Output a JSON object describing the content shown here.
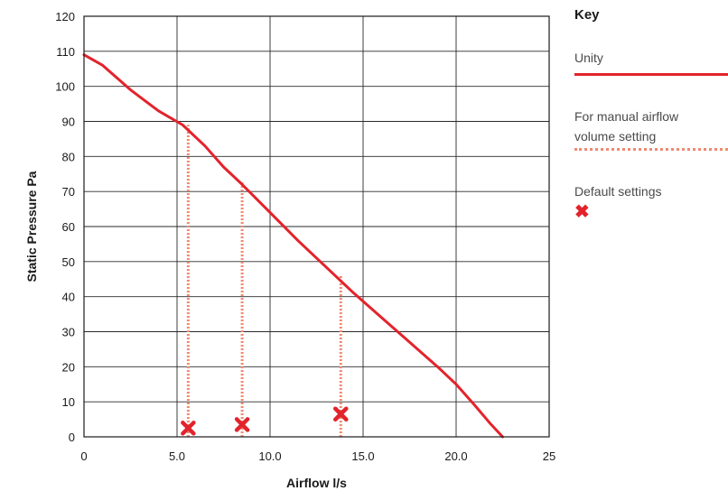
{
  "chart_data": {
    "type": "line",
    "xlabel": "Airflow l/s",
    "ylabel": "Static Pressure Pa",
    "xlim": [
      0,
      25
    ],
    "ylim": [
      0,
      120
    ],
    "x_ticks": [
      "0",
      "5.0",
      "10.0",
      "15.0",
      "20.0",
      "25"
    ],
    "x_tick_values": [
      0,
      5,
      10,
      15,
      20,
      25
    ],
    "y_ticks": [
      0,
      10,
      20,
      30,
      40,
      50,
      60,
      70,
      80,
      90,
      100,
      110,
      120
    ],
    "grid": true,
    "legend_position": "right",
    "colors": {
      "unity": "#e3232c",
      "manual": "#f08a70",
      "default": "#e3232c"
    },
    "series": [
      {
        "name": "Unity",
        "style": "solid",
        "x": [
          0,
          1,
          2.5,
          4,
          5.3,
          6.5,
          7.5,
          8.5,
          10,
          11.5,
          13,
          14.5,
          16,
          17.5,
          19,
          20,
          21,
          21.8,
          22.5
        ],
        "y": [
          109,
          106,
          99,
          93,
          89,
          83,
          77,
          72,
          64,
          56,
          48.5,
          41,
          34,
          27,
          20,
          15,
          9,
          4,
          0
        ]
      },
      {
        "name": "For manual airflow volume setting",
        "style": "dotted",
        "segments": [
          {
            "x": 5.6,
            "y": [
              0,
              89
            ]
          },
          {
            "x": 8.5,
            "y": [
              0,
              73
            ]
          },
          {
            "x": 13.8,
            "y": [
              0,
              46
            ]
          }
        ]
      },
      {
        "name": "Default settings",
        "style": "marker-x",
        "points": [
          {
            "x": 5.6,
            "y": 2.5
          },
          {
            "x": 8.5,
            "y": 3.5
          },
          {
            "x": 13.8,
            "y": 6.5
          }
        ]
      }
    ]
  },
  "legend": {
    "title": "Key",
    "entries": [
      {
        "label": "Unity"
      },
      {
        "label_line1": "For manual airflow",
        "label_line2": "volume setting"
      },
      {
        "label": "Default settings"
      }
    ]
  }
}
